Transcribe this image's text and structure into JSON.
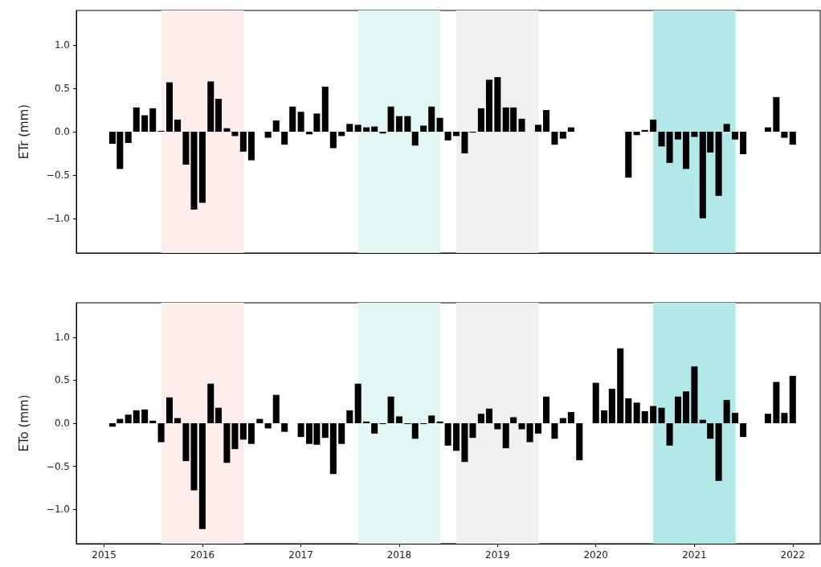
{
  "chart_data": [
    {
      "type": "bar",
      "ylabel": "ETr (mm)",
      "tick_labels": "y",
      "x": [
        "2015-02",
        "2015-03",
        "2015-04",
        "2015-05",
        "2015-06",
        "2015-07",
        "2015-08",
        "2015-09",
        "2015-10",
        "2015-11",
        "2015-12",
        "2016-01",
        "2016-02",
        "2016-03",
        "2016-04",
        "2016-05",
        "2016-06",
        "2016-07",
        "2016-08",
        "2016-09",
        "2016-10",
        "2016-11",
        "2016-12",
        "2017-01",
        "2017-02",
        "2017-03",
        "2017-04",
        "2017-05",
        "2017-06",
        "2017-07",
        "2017-08",
        "2017-09",
        "2017-10",
        "2017-11",
        "2017-12",
        "2018-01",
        "2018-02",
        "2018-03",
        "2018-04",
        "2018-05",
        "2018-06",
        "2018-07",
        "2018-08",
        "2018-09",
        "2018-10",
        "2018-11",
        "2018-12",
        "2019-01",
        "2019-02",
        "2019-03",
        "2019-04",
        "2019-05",
        "2019-06",
        "2019-07",
        "2019-08",
        "2019-09",
        "2019-10",
        "2019-11",
        "2019-12",
        "2020-01",
        "2020-02",
        "2020-03",
        "2020-04",
        "2020-05",
        "2020-06",
        "2020-07",
        "2020-08",
        "2020-09",
        "2020-10",
        "2020-11",
        "2020-12",
        "2021-01",
        "2021-02",
        "2021-03",
        "2021-04",
        "2021-05",
        "2021-06",
        "2021-07",
        "2021-08",
        "2021-09",
        "2021-10",
        "2021-11",
        "2021-12",
        "2022-01"
      ],
      "values": [
        -0.14,
        -0.43,
        -0.13,
        0.28,
        0.19,
        0.27,
        0.01,
        0.57,
        0.14,
        -0.38,
        -0.9,
        -0.82,
        0.58,
        0.38,
        0.04,
        -0.05,
        -0.23,
        -0.33,
        null,
        -0.07,
        0.13,
        -0.15,
        0.29,
        0.23,
        -0.03,
        0.21,
        0.52,
        -0.19,
        -0.05,
        0.09,
        0.08,
        0.05,
        0.06,
        -0.02,
        0.29,
        0.18,
        0.18,
        -0.16,
        0.07,
        0.29,
        0.16,
        -0.1,
        -0.05,
        -0.25,
        -0.01,
        0.27,
        0.6,
        0.63,
        0.28,
        0.28,
        0.15,
        null,
        0.08,
        0.25,
        -0.15,
        -0.08,
        0.05,
        null,
        null,
        null,
        null,
        null,
        null,
        -0.53,
        -0.04,
        0.02,
        0.14,
        -0.17,
        -0.36,
        -0.09,
        -0.43,
        -0.06,
        -1.0,
        -0.24,
        -0.74,
        0.09,
        -0.09,
        -0.26,
        null,
        null,
        0.05,
        0.4,
        -0.07,
        -0.15
      ],
      "color": "#000000",
      "xlim": [
        "2014-09-20",
        "2022-04-13"
      ],
      "xticks": [
        "2015",
        "2016",
        "2017",
        "2018",
        "2019",
        "2020",
        "2021",
        "2022"
      ],
      "ylim": [
        -1.4,
        1.4
      ],
      "yticks": [
        {
          "value": -1,
          "label": "−1.0"
        },
        {
          "value": -0.5,
          "label": "−0.5"
        },
        {
          "value": 0,
          "label": "0.0"
        },
        {
          "value": 0.5,
          "label": "0.5"
        },
        {
          "value": 1,
          "label": "1.0"
        }
      ],
      "bands": [
        {
          "axis": "x",
          "from": "2015-08-01",
          "to": "2016-06-03",
          "color": "#fdeeeb"
        },
        {
          "axis": "x",
          "from": "2017-08-01",
          "to": "2018-06-03",
          "color": "#e2f6f4"
        },
        {
          "axis": "x",
          "from": "2018-08-01",
          "to": "2019-06-03",
          "color": "#f0f0f0"
        },
        {
          "axis": "x",
          "from": "2020-08-01",
          "to": "2021-06-03",
          "color": "#b3e8e8"
        }
      ]
    },
    {
      "type": "bar",
      "ylabel": "ETo (mm)",
      "x": [
        "2015-02",
        "2015-03",
        "2015-04",
        "2015-05",
        "2015-06",
        "2015-07",
        "2015-08",
        "2015-09",
        "2015-10",
        "2015-11",
        "2015-12",
        "2016-01",
        "2016-02",
        "2016-03",
        "2016-04",
        "2016-05",
        "2016-06",
        "2016-07",
        "2016-08",
        "2016-09",
        "2016-10",
        "2016-11",
        "2016-12",
        "2017-01",
        "2017-02",
        "2017-03",
        "2017-04",
        "2017-05",
        "2017-06",
        "2017-07",
        "2017-08",
        "2017-09",
        "2017-10",
        "2017-11",
        "2017-12",
        "2018-01",
        "2018-02",
        "2018-03",
        "2018-04",
        "2018-05",
        "2018-06",
        "2018-07",
        "2018-08",
        "2018-09",
        "2018-10",
        "2018-11",
        "2018-12",
        "2019-01",
        "2019-02",
        "2019-03",
        "2019-04",
        "2019-05",
        "2019-06",
        "2019-07",
        "2019-08",
        "2019-09",
        "2019-10",
        "2019-11",
        "2019-12",
        "2020-01",
        "2020-02",
        "2020-03",
        "2020-04",
        "2020-05",
        "2020-06",
        "2020-07",
        "2020-08",
        "2020-09",
        "2020-10",
        "2020-11",
        "2020-12",
        "2021-01",
        "2021-02",
        "2021-03",
        "2021-04",
        "2021-05",
        "2021-06",
        "2021-07",
        "2021-08",
        "2021-09",
        "2021-10",
        "2021-11",
        "2021-12",
        "2022-01"
      ],
      "values": [
        -0.04,
        0.05,
        0.1,
        0.15,
        0.16,
        0.03,
        -0.22,
        0.3,
        0.06,
        -0.44,
        -0.78,
        -1.23,
        0.46,
        0.18,
        -0.46,
        -0.3,
        -0.19,
        -0.24,
        0.05,
        -0.06,
        0.33,
        -0.1,
        null,
        -0.16,
        -0.24,
        -0.25,
        -0.17,
        -0.59,
        -0.24,
        0.15,
        0.46,
        0.02,
        -0.12,
        -0.01,
        0.31,
        0.08,
        -0.01,
        -0.18,
        -0.01,
        0.09,
        0.02,
        -0.26,
        -0.32,
        -0.45,
        -0.17,
        0.11,
        0.17,
        -0.07,
        -0.29,
        0.07,
        -0.07,
        -0.22,
        -0.12,
        0.31,
        -0.18,
        0.06,
        0.13,
        -0.43,
        null,
        0.47,
        0.15,
        0.4,
        0.87,
        0.29,
        0.24,
        0.14,
        0.2,
        0.18,
        -0.26,
        0.31,
        0.37,
        0.66,
        0.04,
        -0.18,
        -0.67,
        0.27,
        0.12,
        -0.16,
        null,
        null,
        0.11,
        0.48,
        0.12,
        0.55
      ],
      "color": "#000000",
      "xlim": [
        "2014-09-20",
        "2022-04-13"
      ],
      "xticks": [
        "2015",
        "2016",
        "2017",
        "2018",
        "2019",
        "2020",
        "2021",
        "2022"
      ],
      "ylim": [
        -1.4,
        1.4
      ],
      "yticks": [
        {
          "value": -1,
          "label": "−1.0"
        },
        {
          "value": -0.5,
          "label": "−0.5"
        },
        {
          "value": 0,
          "label": "0.0"
        },
        {
          "value": 0.5,
          "label": "0.5"
        },
        {
          "value": 1,
          "label": "1.0"
        }
      ],
      "bands": [
        {
          "axis": "x",
          "from": "2015-08-01",
          "to": "2016-06-03",
          "color": "#fdeeeb"
        },
        {
          "axis": "x",
          "from": "2017-08-01",
          "to": "2018-06-03",
          "color": "#e2f6f4"
        },
        {
          "axis": "x",
          "from": "2018-08-01",
          "to": "2019-06-03",
          "color": "#f0f0f0"
        },
        {
          "axis": "x",
          "from": "2020-08-01",
          "to": "2021-06-03",
          "color": "#b3e8e8"
        }
      ]
    }
  ]
}
